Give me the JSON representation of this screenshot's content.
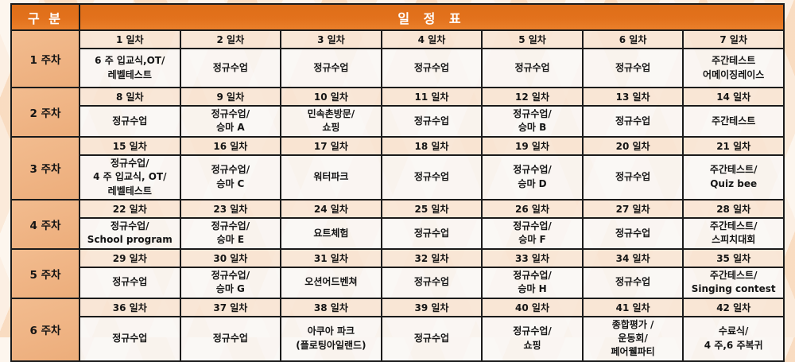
{
  "table": {
    "corner_label": "구 분",
    "title": "일 정 표",
    "weeks": [
      {
        "label": "1 주차",
        "days": [
          "1 일차",
          "2 일차",
          "3 일차",
          "4 일차",
          "5 일차",
          "6 일차",
          "7 일차"
        ],
        "activities": [
          "6 주 입교식,OT/\n레벨테스트",
          "정규수업",
          "정규수업",
          "정규수업",
          "정규수업",
          "정규수업",
          "주간테스트\n어메이징레이스"
        ]
      },
      {
        "label": "2 주차",
        "days": [
          "8 일차",
          "9 일차",
          "10 일차",
          "11 일차",
          "12 일차",
          "13 일차",
          "14 일차"
        ],
        "activities": [
          "정규수업",
          "정규수업/\n승마 A",
          "민속촌방문/\n쇼핑",
          "정규수업",
          "정규수업/\n승마 B",
          "정규수업",
          "주간테스트"
        ]
      },
      {
        "label": "3 주차",
        "days": [
          "15 일차",
          "16 일차",
          "17 일차",
          "18 일차",
          "19 일차",
          "20 일차",
          "21 일차"
        ],
        "activities": [
          "정규수업/\n4 주 입교식, OT/\n레벨테스트",
          "정규수업/\n승마 C",
          "워터파크",
          "정규수업",
          "정규수업/\n승마 D",
          "정규수업",
          "주간테스트/\nQuiz bee"
        ]
      },
      {
        "label": "4 주차",
        "days": [
          "22 일차",
          "23 일차",
          "24 일차",
          "25 일차",
          "26 일차",
          "27 일차",
          "28 일차"
        ],
        "activities": [
          "정규수업/\nSchool program",
          "정규수업/\n승마 E",
          "요트체험",
          "정규수업",
          "정규수업/\n승마 F",
          "정규수업",
          "주간테스트/\n스피치대회"
        ]
      },
      {
        "label": "5 주차",
        "days": [
          "29 일차",
          "30 일차",
          "31 일차",
          "32 일차",
          "33 일차",
          "34 일차",
          "35 일차"
        ],
        "activities": [
          "정규수업",
          "정규수업/\n승마 G",
          "오션어드벤쳐",
          "정규수업",
          "정규수업/\n승마 H",
          "정규수업",
          "주간테스트/\nSinging contest"
        ]
      },
      {
        "label": "6 주차",
        "days": [
          "36 일차",
          "37 일차",
          "38 일차",
          "39 일차",
          "40 일차",
          "41 일차",
          "42 일차"
        ],
        "activities": [
          "정규수업",
          "정규수업",
          "아쿠아 파크\n(플로팅아일랜드)",
          "정규수업",
          "정규수업/\n쇼핑",
          "종합평가 /\n운동회/\n페어웰파티",
          "수료식/\n4 주,6 주복귀"
        ]
      }
    ]
  },
  "colors": {
    "header_orange": "#E2711C",
    "week_peach": "#EFB383",
    "day_head_peach": "#F8E5D4",
    "content_white": "#F9F8F7",
    "border_black": "#1B1B1B",
    "background": "#FBEADA"
  }
}
